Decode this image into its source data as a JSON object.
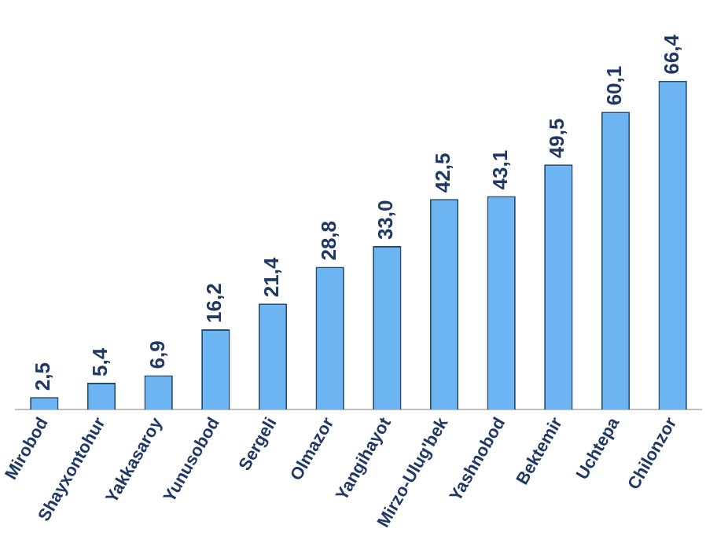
{
  "chart_data": {
    "type": "bar",
    "categories": [
      "Mirobod",
      "Shayxontohur",
      "Yakkasaroy",
      "Yunusobod",
      "Sergeli",
      "Olmazor",
      "Yangihayot",
      "Mirzo-Ulug'bek",
      "Yashnobod",
      "Bektemir",
      "Uchtepa",
      "Chilonzor"
    ],
    "values": [
      2.5,
      5.4,
      6.9,
      16.2,
      21.4,
      28.8,
      33.0,
      42.5,
      43.1,
      49.5,
      60.1,
      66.4
    ],
    "value_labels": [
      "2,5",
      "5,4",
      "6,9",
      "16,2",
      "21,4",
      "28,8",
      "33,0",
      "42,5",
      "43,1",
      "49,5",
      "60,1",
      "66,4"
    ],
    "color": "#6cb4f2",
    "tick_labels": "x",
    "grid": false
  }
}
